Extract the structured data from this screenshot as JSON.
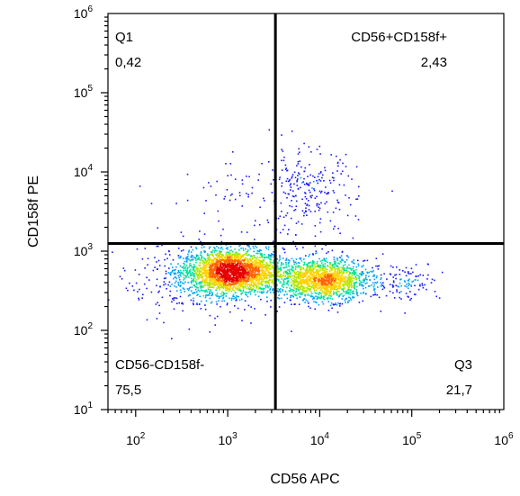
{
  "chart_data": {
    "type": "scatter",
    "subtype": "flow-cytometry density dot plot",
    "xlabel": "CD56 APC",
    "ylabel": "CD158f PE",
    "x_scale": "log",
    "y_scale": "log",
    "xlim": [
      50,
      1000000
    ],
    "ylim": [
      10,
      1000000
    ],
    "x_ticks": [
      {
        "value": 100,
        "base": "10",
        "exp": "2"
      },
      {
        "value": 1000,
        "base": "10",
        "exp": "3"
      },
      {
        "value": 10000,
        "base": "10",
        "exp": "4"
      },
      {
        "value": 100000,
        "base": "10",
        "exp": "5"
      },
      {
        "value": 1000000,
        "base": "10",
        "exp": "6"
      }
    ],
    "y_ticks": [
      {
        "value": 10,
        "base": "10",
        "exp": "1"
      },
      {
        "value": 100,
        "base": "10",
        "exp": "2"
      },
      {
        "value": 1000,
        "base": "10",
        "exp": "3"
      },
      {
        "value": 10000,
        "base": "10",
        "exp": "4"
      },
      {
        "value": 100000,
        "base": "10",
        "exp": "5"
      },
      {
        "value": 1000000,
        "base": "10",
        "exp": "6"
      }
    ],
    "gate": {
      "x": 3300,
      "y": 1250
    },
    "quadrants": [
      {
        "position": "top-left",
        "name": "Q1",
        "value": "0,42"
      },
      {
        "position": "top-right",
        "name": "CD56+CD158f+",
        "value": "2,43"
      },
      {
        "position": "bottom-left",
        "name": "CD56-CD158f-",
        "value": "75,5"
      },
      {
        "position": "bottom-right",
        "name": "Q3",
        "value": "21,7"
      }
    ],
    "populations": [
      {
        "cx": 1100,
        "cy": 560,
        "sdx": 0.28,
        "sdy": 0.14,
        "count": 2600
      },
      {
        "cx": 11000,
        "cy": 440,
        "sdx": 0.24,
        "sdy": 0.13,
        "count": 1500
      },
      {
        "cx": 7000,
        "cy": 5500,
        "sdx": 0.27,
        "sdy": 0.28,
        "count": 240
      },
      {
        "cx": 80000,
        "cy": 430,
        "sdx": 0.2,
        "sdy": 0.12,
        "count": 120
      },
      {
        "cx": 600,
        "cy": 400,
        "sdx": 0.5,
        "sdy": 0.25,
        "count": 250
      },
      {
        "cx": 1500,
        "cy": 5000,
        "sdx": 0.45,
        "sdy": 0.2,
        "count": 60
      }
    ],
    "color_scale": [
      "#1a1aff",
      "#00a0ff",
      "#00e0a0",
      "#b4e600",
      "#ffd200",
      "#ff6400",
      "#e60000"
    ],
    "grid": false,
    "legend": "none"
  }
}
